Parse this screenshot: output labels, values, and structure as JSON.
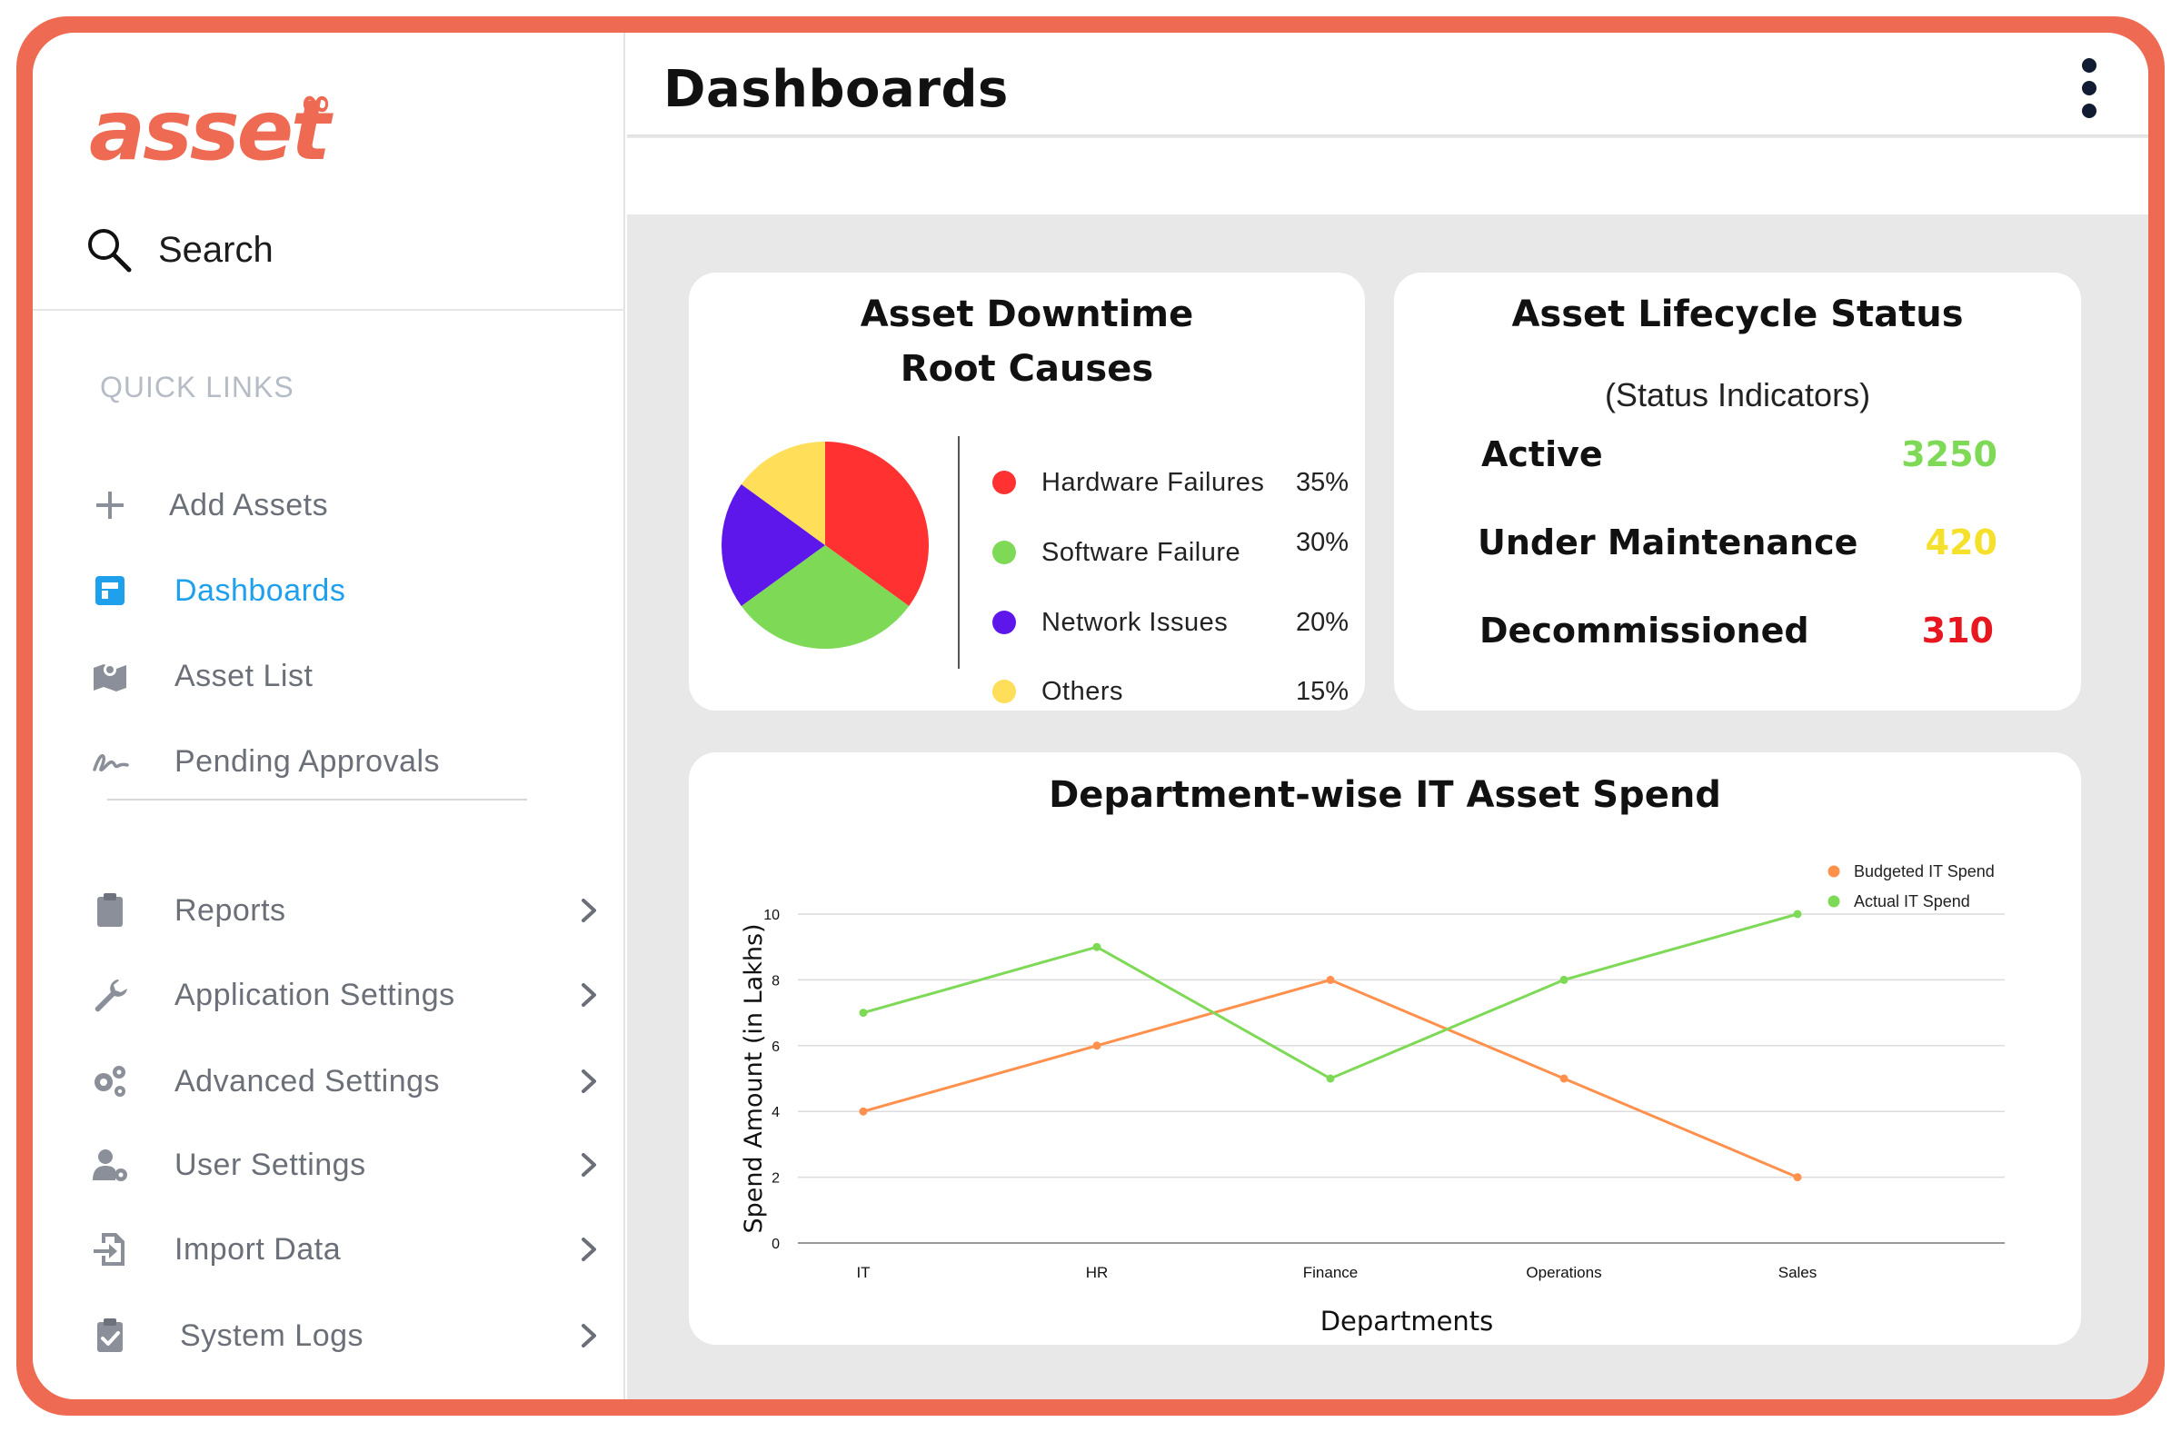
{
  "brand": {
    "logo_text": "asset",
    "logo_mark": "∞",
    "accent": "#ee6a52"
  },
  "sidebar": {
    "search_label": "Search",
    "quick_links_title": "QUICK LINKS",
    "quick_links": [
      {
        "label": "Add Assets",
        "icon": "plus-icon"
      },
      {
        "label": "Dashboards",
        "icon": "dashboard-icon",
        "active": true
      },
      {
        "label": "Asset List",
        "icon": "map-icon"
      },
      {
        "label": "Pending Approvals",
        "icon": "signature-icon"
      }
    ],
    "menu": [
      {
        "label": "Reports",
        "icon": "clipboard-icon"
      },
      {
        "label": "Application Settings",
        "icon": "wrench-icon"
      },
      {
        "label": "Advanced Settings",
        "icon": "gears-icon"
      },
      {
        "label": "User Settings",
        "icon": "user-gear-icon"
      },
      {
        "label": "Import Data",
        "icon": "import-icon"
      },
      {
        "label": "System Logs",
        "icon": "clipboard-check-icon"
      }
    ]
  },
  "header": {
    "title": "Dashboards"
  },
  "cards": {
    "downtime": {
      "title_line1": "Asset Downtime",
      "title_line2": "Root Causes"
    },
    "lifecycle": {
      "title": "Asset Lifecycle Status",
      "subtitle": "(Status Indicators)",
      "rows": [
        {
          "label": "Active",
          "value": "3250",
          "color": "#7ed957"
        },
        {
          "label": "Under Maintenance",
          "value": "420",
          "color": "#f5e12b"
        },
        {
          "label": "Decommissioned",
          "value": "310",
          "color": "#e8161f"
        }
      ]
    }
  },
  "chart_data": [
    {
      "type": "pie",
      "title": "Asset Downtime Root Causes",
      "slices": [
        {
          "label": "Hardware Failures",
          "value": 35,
          "display": "35%",
          "color": "#ff3131"
        },
        {
          "label": "Software Failure",
          "value": 30,
          "display": "30%",
          "color": "#7ed957"
        },
        {
          "label": "Network Issues",
          "value": 20,
          "display": "20%",
          "color": "#5e17eb"
        },
        {
          "label": "Others",
          "value": 15,
          "display": "15%",
          "color": "#ffde59"
        }
      ]
    },
    {
      "type": "line",
      "title": "Department-wise IT Asset Spend",
      "xlabel": "Departments",
      "ylabel": "Spend Amount (in Lakhs)",
      "categories": [
        "IT",
        "HR",
        "Finance",
        "Operations",
        "Sales"
      ],
      "ylim": [
        0,
        10
      ],
      "yticks": [
        "0",
        "2",
        "4",
        "6",
        "8",
        "10"
      ],
      "grid": true,
      "legend_position": "top-right",
      "series": [
        {
          "name": "Budgeted IT Spend",
          "values": [
            4,
            6,
            8,
            5,
            2
          ],
          "color": "#ff914d"
        },
        {
          "name": "Actual IT Spend",
          "values": [
            7,
            9,
            5,
            8,
            10
          ],
          "color": "#7ed957"
        }
      ]
    }
  ]
}
